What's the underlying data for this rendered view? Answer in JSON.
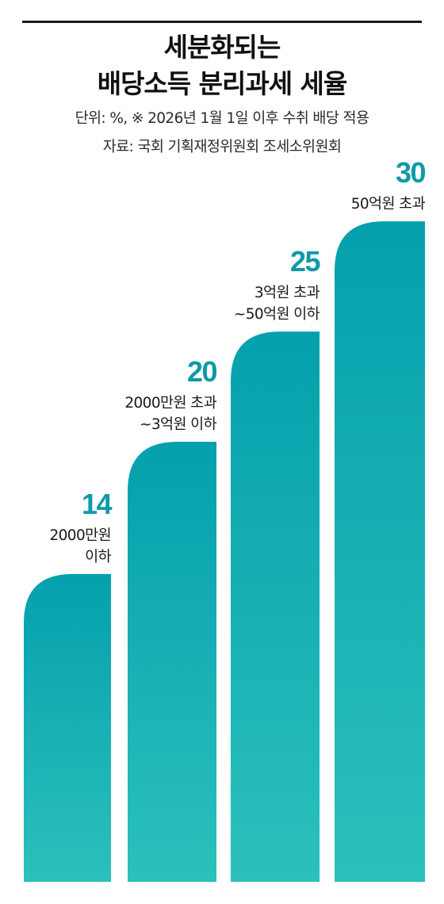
{
  "header": {
    "title_line1": "세분화되는",
    "title_line2": "배당소득 분리과세 세율",
    "unit_note": "단위: %, ※ 2026년 1월 1일 이후 수취 배당 적용",
    "source": "자료: 국회 기획재정위원회 조세소위원회"
  },
  "colors": {
    "bar_top": "#05a0ad",
    "bar_bottom": "#2bc0bb",
    "value_text": "#0e9aa8"
  },
  "chart_data": {
    "type": "bar",
    "title": "세분화되는 배당소득 분리과세 세율",
    "unit": "%",
    "categories": [
      [
        "2000만원",
        "이하"
      ],
      [
        "2000만원 초과",
        "~3억원 이하"
      ],
      [
        "3억원 초과",
        "~50억원 이하"
      ],
      [
        "50억원 초과"
      ]
    ],
    "values": [
      14,
      20,
      25,
      30
    ],
    "grid": false,
    "legend": "none"
  }
}
